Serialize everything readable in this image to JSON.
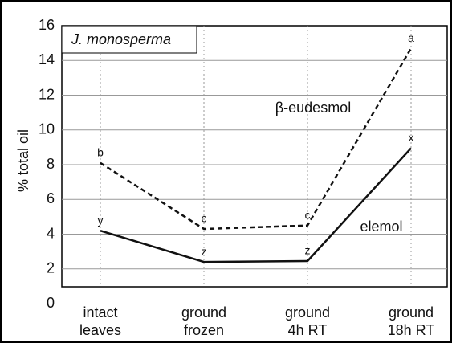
{
  "chart_data": {
    "type": "line",
    "annotation": "J. monosperma",
    "ylabel": "% total oil",
    "categories": [
      [
        "intact",
        "leaves"
      ],
      [
        "ground",
        "frozen"
      ],
      [
        "ground",
        "4h RT"
      ],
      [
        "ground",
        "18h RT"
      ]
    ],
    "series": [
      {
        "name": "β-eudesmol",
        "color": "#111111",
        "dash": true,
        "values": [
          8.1,
          4.3,
          4.5,
          14.7
        ],
        "letters": [
          "b",
          "c",
          "c",
          "a"
        ]
      },
      {
        "name": "elemol",
        "color": "#111111",
        "dash": false,
        "values": [
          4.2,
          2.4,
          2.45,
          8.95
        ],
        "letters": [
          "y",
          "z",
          "z",
          "x"
        ]
      }
    ],
    "ylim": [
      0,
      16
    ],
    "yticks": [
      0,
      2,
      4,
      6,
      8,
      10,
      12,
      14,
      16
    ],
    "grid": true
  }
}
